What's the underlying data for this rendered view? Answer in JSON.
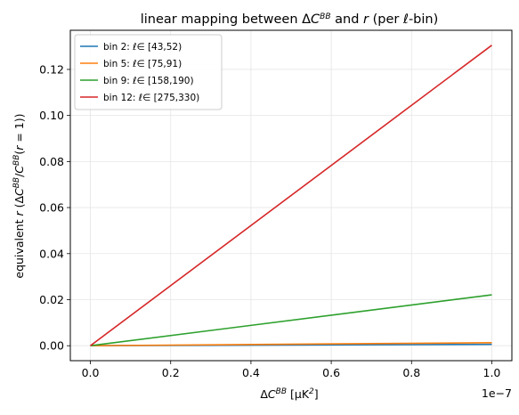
{
  "chart_data": {
    "type": "line",
    "title": "linear mapping between ΔC^BB and r (per ℓ-bin)",
    "title_parts": [
      "linear mapping between Δ",
      "C",
      "BB",
      " and ",
      "r",
      " (per ℓ-bin)"
    ],
    "xlabel_parts": [
      "Δ",
      "C",
      "BB",
      "  [μK",
      "2",
      "]"
    ],
    "ylabel_parts": [
      "equivalent ",
      "r",
      "  (Δ",
      "C",
      "BB",
      "/",
      "C",
      "BB",
      "(",
      "r",
      " = 1))"
    ],
    "x_offset_text": "1e−7",
    "x_scale": 1e-07,
    "xlim": [
      -0.05,
      1.05
    ],
    "ylim": [
      -0.0065,
      0.137
    ],
    "x_ticks": [
      0.0,
      0.2,
      0.4,
      0.6,
      0.8,
      1.0
    ],
    "x_tick_labels": [
      "0.0",
      "0.2",
      "0.4",
      "0.6",
      "0.8",
      "1.0"
    ],
    "y_ticks": [
      0.0,
      0.02,
      0.04,
      0.06,
      0.08,
      0.1,
      0.12
    ],
    "y_tick_labels": [
      "0.00",
      "0.02",
      "0.04",
      "0.06",
      "0.08",
      "0.10",
      "0.12"
    ],
    "grid": true,
    "legend_position": "upper-left",
    "series": [
      {
        "name": "bin 2: ℓ∈ [43,52)",
        "color": "#1f77b4",
        "x": [
          0.0,
          1.0
        ],
        "y": [
          0.0,
          0.0006
        ]
      },
      {
        "name": "bin 5: ℓ∈ [75,91)",
        "color": "#ff7f0e",
        "x": [
          0.0,
          1.0
        ],
        "y": [
          0.0,
          0.0013
        ]
      },
      {
        "name": "bin 9: ℓ∈ [158,190)",
        "color": "#2ca02c",
        "x": [
          0.0,
          1.0
        ],
        "y": [
          0.0,
          0.0221
        ]
      },
      {
        "name": "bin 12: ℓ∈ [275,330)",
        "color": "#d62728",
        "x": [
          0.0,
          1.0
        ],
        "y": [
          0.0,
          0.1305
        ]
      }
    ]
  }
}
